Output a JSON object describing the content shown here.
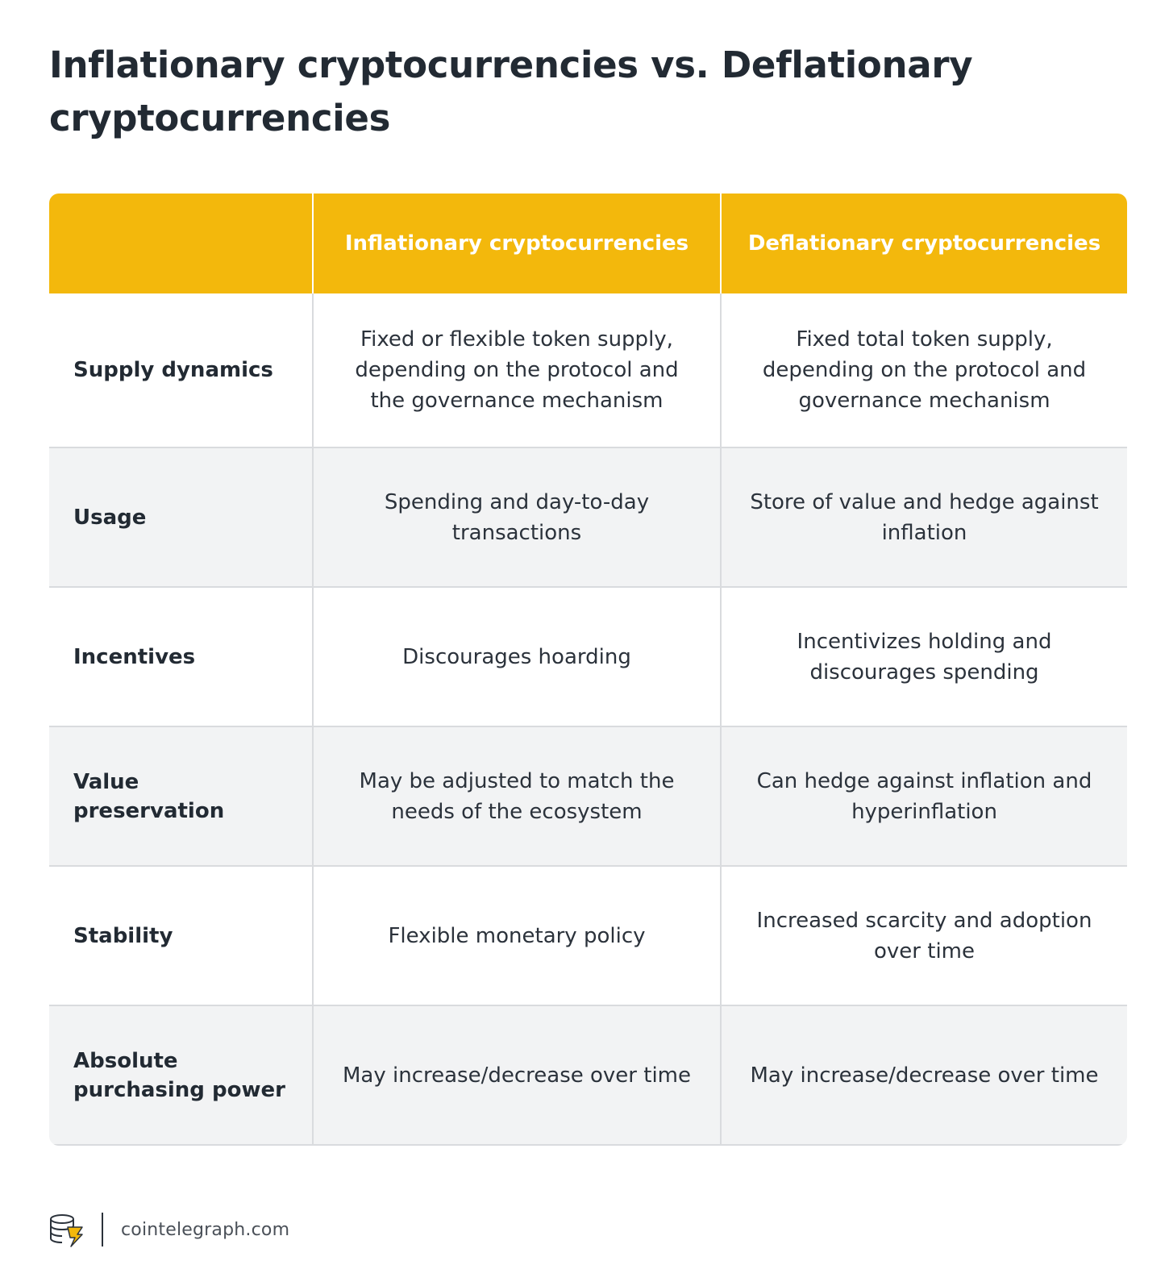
{
  "title": "Inflationary cryptocurrencies vs. Deflationary cryptocurrencies",
  "table": {
    "headers": [
      "",
      "Inflationary cryptocurrencies",
      "Deflationary cryptocurrencies"
    ],
    "rows": [
      {
        "label": "Supply dynamics",
        "inflationary": "Fixed or flexible token supply, depending on the protocol and the governance mechanism",
        "deflationary": "Fixed total token supply, depending on the protocol and governance mechanism"
      },
      {
        "label": "Usage",
        "inflationary": "Spending and day-to-day transactions",
        "deflationary": "Store of value and hedge against inflation"
      },
      {
        "label": "Incentives",
        "inflationary": "Discourages hoarding",
        "deflationary": "Incentivizes holding and discourages spending"
      },
      {
        "label": "Value preservation",
        "inflationary": "May be adjusted to match the needs of the ecosystem",
        "deflationary": "Can hedge against inflation and hyperinflation"
      },
      {
        "label": "Stability",
        "inflationary": "Flexible monetary policy",
        "deflationary": "Increased scarcity and adoption over time"
      },
      {
        "label": "Absolute purchasing power",
        "inflationary": "May increase/decrease over time",
        "deflationary": "May increase/decrease over time"
      }
    ]
  },
  "footer": {
    "logo_icon": "cointelegraph-logo-icon",
    "site": "cointelegraph.com"
  },
  "colors": {
    "header_bg": "#f3b80c",
    "grey_row": "#f2f3f4",
    "text_dark": "#222a33"
  }
}
